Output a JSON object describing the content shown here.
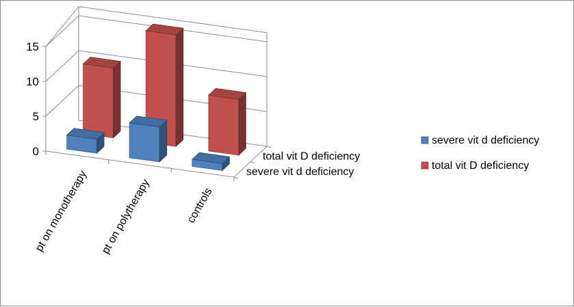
{
  "chart_data": {
    "type": "bar",
    "title": "",
    "xlabel": "",
    "ylabel": "",
    "categories": [
      "pt on monotherapy",
      "pt on polytherapy",
      "controls"
    ],
    "depth_labels": [
      "severe vit d deficiency",
      "total vit D deficiency"
    ],
    "series": [
      {
        "name": "severe vit d deficiency",
        "color": "#4f81bd",
        "values": [
          2,
          5,
          1
        ]
      },
      {
        "name": "total vit D deficiency",
        "color": "#c0504d",
        "values": [
          10,
          16,
          8
        ]
      }
    ],
    "ylim": [
      0,
      15
    ],
    "yticks": [
      0,
      5,
      10,
      15
    ],
    "grid": true,
    "legend": "right"
  }
}
